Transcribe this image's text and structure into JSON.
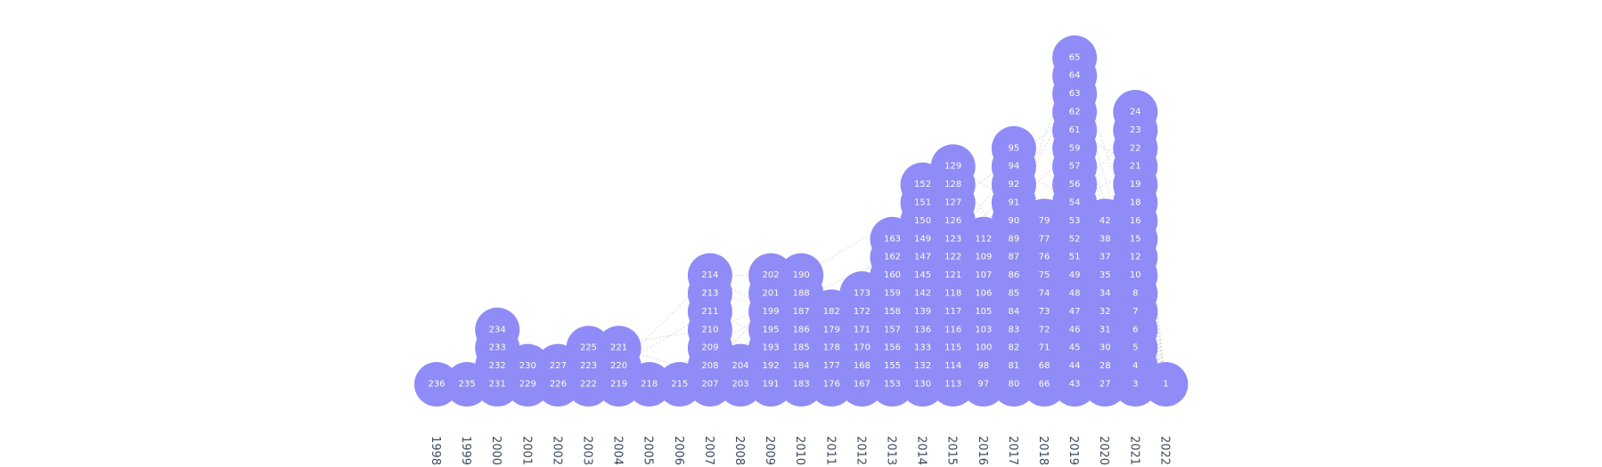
{
  "chart_data": {
    "type": "scatter",
    "marker": "circle",
    "colors": {
      "node_fill": "#8f8cf7",
      "node_label": "#fffde7",
      "link": "#c8c8d2",
      "axis_text": "#3d4a5c"
    },
    "years": [
      "1998",
      "1999",
      "2000",
      "2001",
      "2002",
      "2003",
      "2004",
      "2005",
      "2006",
      "2007",
      "2008",
      "2009",
      "2010",
      "2011",
      "2012",
      "2013",
      "2014",
      "2015",
      "2016",
      "2017",
      "2018",
      "2019",
      "2020",
      "2021",
      "2022"
    ],
    "columns": [
      {
        "year": "1998",
        "ids": [
          236
        ]
      },
      {
        "year": "1999",
        "ids": [
          235
        ]
      },
      {
        "year": "2000",
        "ids": [
          231,
          232,
          233,
          234
        ]
      },
      {
        "year": "2001",
        "ids": [
          229,
          230
        ]
      },
      {
        "year": "2002",
        "ids": [
          226,
          227
        ]
      },
      {
        "year": "2003",
        "ids": [
          222,
          223,
          225
        ]
      },
      {
        "year": "2004",
        "ids": [
          219,
          220,
          221
        ]
      },
      {
        "year": "2005",
        "ids": [
          218
        ]
      },
      {
        "year": "2006",
        "ids": [
          215
        ]
      },
      {
        "year": "2007",
        "ids": [
          207,
          208,
          209,
          210,
          211,
          213,
          214
        ]
      },
      {
        "year": "2008",
        "ids": [
          203,
          204
        ]
      },
      {
        "year": "2009",
        "ids": [
          191,
          192,
          193,
          195,
          199,
          201,
          202
        ]
      },
      {
        "year": "2010",
        "ids": [
          183,
          184,
          185,
          186,
          187,
          188,
          190
        ]
      },
      {
        "year": "2011",
        "ids": [
          176,
          177,
          178,
          179,
          182
        ]
      },
      {
        "year": "2012",
        "ids": [
          167,
          168,
          170,
          171,
          172,
          173
        ]
      },
      {
        "year": "2013",
        "ids": [
          153,
          155,
          156,
          157,
          158,
          159,
          160,
          162,
          163
        ]
      },
      {
        "year": "2014",
        "ids": [
          130,
          132,
          133,
          136,
          139,
          142,
          145,
          147,
          149,
          150,
          151,
          152
        ]
      },
      {
        "year": "2015",
        "ids": [
          113,
          114,
          115,
          116,
          117,
          118,
          121,
          122,
          123,
          126,
          127,
          128,
          129
        ]
      },
      {
        "year": "2016",
        "ids": [
          97,
          98,
          100,
          103,
          105,
          106,
          107,
          109,
          112
        ]
      },
      {
        "year": "2017",
        "ids": [
          80,
          81,
          82,
          83,
          84,
          85,
          86,
          87,
          89,
          90,
          91,
          92,
          94,
          95
        ]
      },
      {
        "year": "2018",
        "ids": [
          66,
          68,
          71,
          72,
          73,
          74,
          75,
          76,
          77,
          79
        ]
      },
      {
        "year": "2019",
        "ids": [
          43,
          44,
          45,
          46,
          47,
          48,
          49,
          51,
          52,
          53,
          54,
          56,
          57,
          59,
          61,
          62,
          63,
          64,
          65
        ]
      },
      {
        "year": "2020",
        "ids": [
          27,
          28,
          30,
          31,
          32,
          34,
          35,
          37,
          38,
          42
        ]
      },
      {
        "year": "2021",
        "ids": [
          3,
          4,
          5,
          6,
          7,
          8,
          10,
          12,
          15,
          16,
          18,
          19,
          21,
          22,
          23,
          24
        ]
      },
      {
        "year": "2022",
        "ids": [
          1
        ]
      }
    ]
  }
}
